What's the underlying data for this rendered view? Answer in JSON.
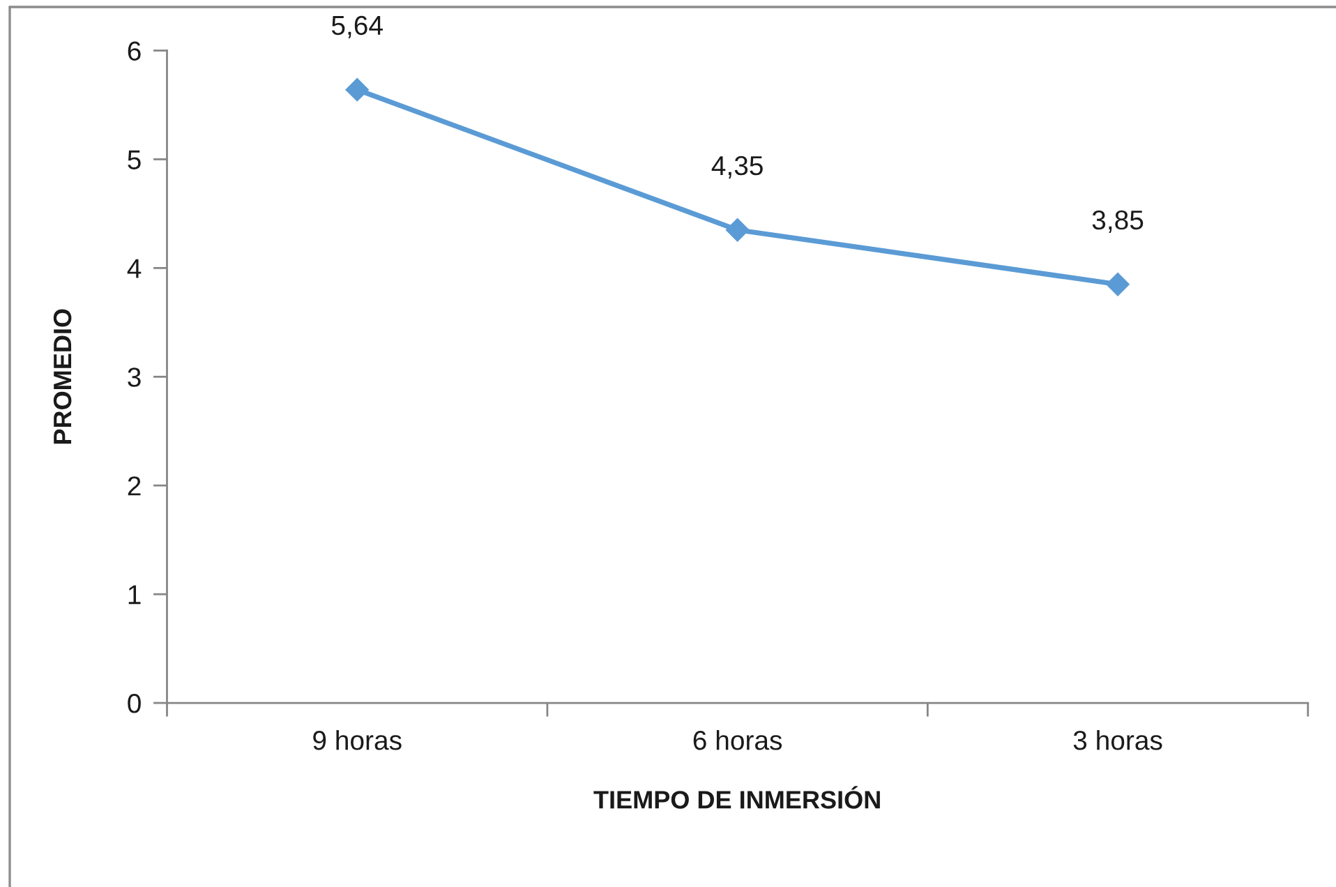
{
  "chart_data": {
    "type": "line",
    "xlabel": "TIEMPO DE INMERSIÓN",
    "ylabel": "PROMEDIO",
    "categories": [
      "9 horas",
      "6 horas",
      "3 horas"
    ],
    "series": [
      {
        "color": "#5b9bd5",
        "values": [
          5.64,
          4.35,
          3.85
        ],
        "value_labels": [
          "5,64",
          "4,35",
          "3,85"
        ]
      }
    ],
    "ylim": [
      0,
      6
    ],
    "yticks": [
      0,
      1,
      2,
      3,
      4,
      5,
      6
    ],
    "marker": "diamond",
    "line_style": "solid",
    "grid": false
  }
}
